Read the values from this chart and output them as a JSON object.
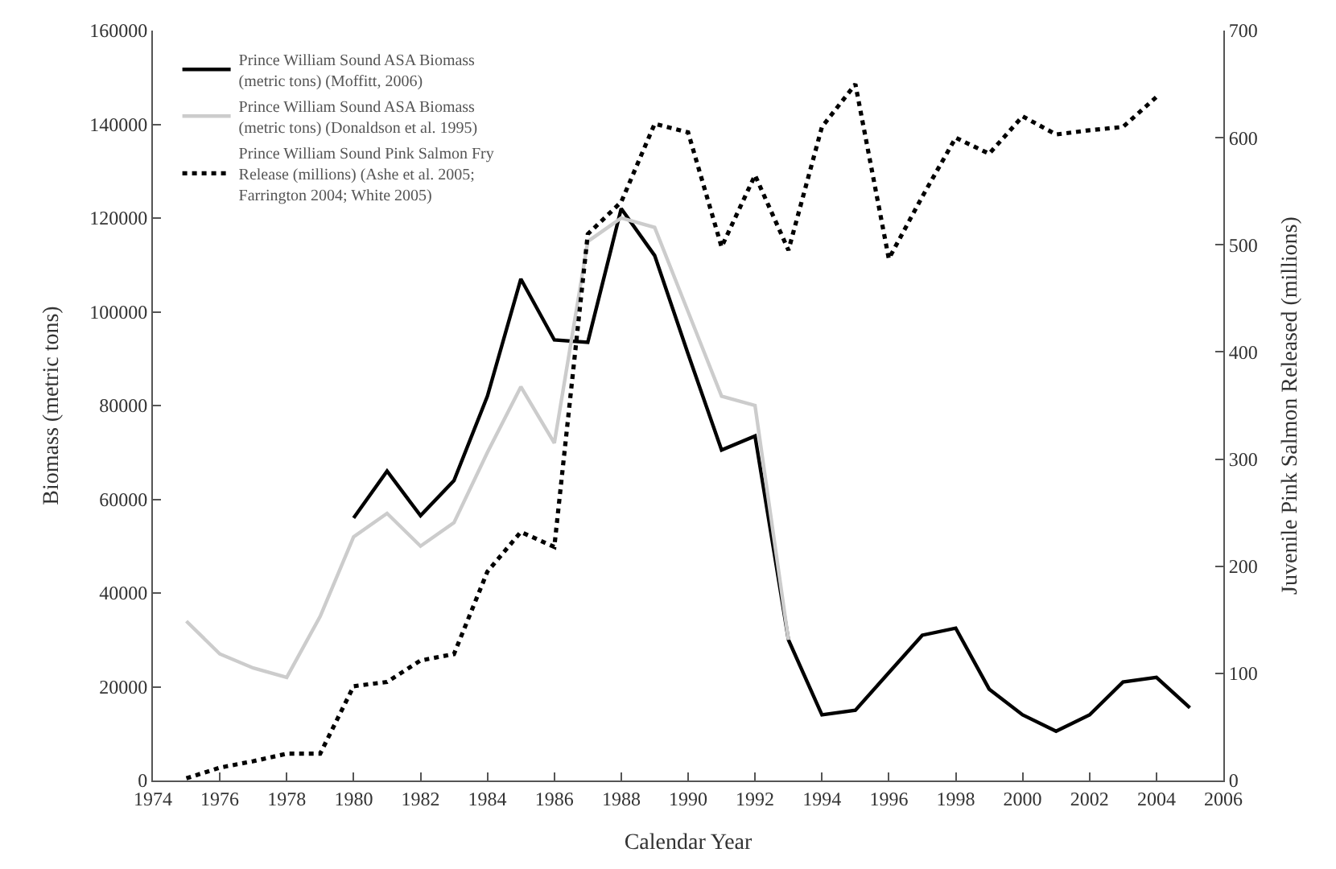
{
  "chart_data": {
    "type": "line",
    "xlabel": "Calendar Year",
    "ylabel": "Biomass (metric tons)",
    "y2label": "Juvenile Pink Salmon Released (millions)",
    "xlim": [
      1974,
      2006
    ],
    "xticks": [
      1974,
      1976,
      1978,
      1980,
      1982,
      1984,
      1986,
      1988,
      1990,
      1992,
      1994,
      1996,
      1998,
      2000,
      2002,
      2004,
      2006
    ],
    "ylim": [
      0,
      160000
    ],
    "yticks": [
      0,
      20000,
      40000,
      60000,
      80000,
      100000,
      120000,
      140000,
      160000
    ],
    "y2lim": [
      0,
      700
    ],
    "y2ticks": [
      0,
      100,
      200,
      300,
      400,
      500,
      600,
      700
    ],
    "legend": "top left",
    "marker": "none",
    "series": [
      {
        "name": "Prince William Sound ASA Biomass (metric tons) (Moffitt, 2006)",
        "color": "#000000",
        "line_style": "solid",
        "x": [
          1980,
          1981,
          1982,
          1983,
          1984,
          1985,
          1986,
          1987,
          1988,
          1989,
          1990,
          1991,
          1992,
          1993,
          1994,
          1995,
          1996,
          1997,
          1998,
          1999,
          2000,
          2001,
          2002,
          2003,
          2004,
          2005
        ],
        "values": [
          56000,
          66000,
          56500,
          64000,
          82000,
          107000,
          94000,
          93500,
          122000,
          112000,
          91000,
          70500,
          73500,
          30000,
          14000,
          15000,
          23000,
          31000,
          32500,
          19500,
          14000,
          10500,
          14000,
          21000,
          22000,
          15500
        ]
      },
      {
        "name": "Prince William Sound ASA Biomass (metric tons) (Donaldson et al. 1995)",
        "color": "#cccccc",
        "line_style": "solid",
        "x": [
          1975,
          1976,
          1977,
          1978,
          1979,
          1980,
          1981,
          1982,
          1983,
          1984,
          1985,
          1986,
          1987,
          1988,
          1989,
          1990,
          1991,
          1992,
          1993
        ],
        "values": [
          34000,
          27000,
          24000,
          22000,
          35000,
          52000,
          57000,
          50000,
          55000,
          70000,
          84000,
          72000,
          115000,
          120000,
          118000,
          100000,
          82000,
          80000,
          30000
        ]
      },
      {
        "name": "Prince William Sound Pink Salmon Fry Release (millions) (Ashe et al. 2005; Farrington 2004; White 2005)",
        "color": "#000000",
        "line_style": "dotted",
        "axis": "y2",
        "x": [
          1975,
          1976,
          1977,
          1978,
          1979,
          1980,
          1981,
          1982,
          1983,
          1984,
          1985,
          1986,
          1987,
          1988,
          1989,
          1990,
          1991,
          1992,
          1993,
          1994,
          1995,
          1996,
          1997,
          1998,
          1999,
          2000,
          2001,
          2002,
          2003,
          2004
        ],
        "values": [
          2,
          12,
          18,
          25,
          25,
          88,
          92,
          112,
          118,
          195,
          232,
          218,
          510,
          540,
          613,
          605,
          498,
          565,
          495,
          610,
          650,
          487,
          545,
          600,
          585,
          620,
          603,
          607,
          610,
          638
        ]
      }
    ]
  }
}
